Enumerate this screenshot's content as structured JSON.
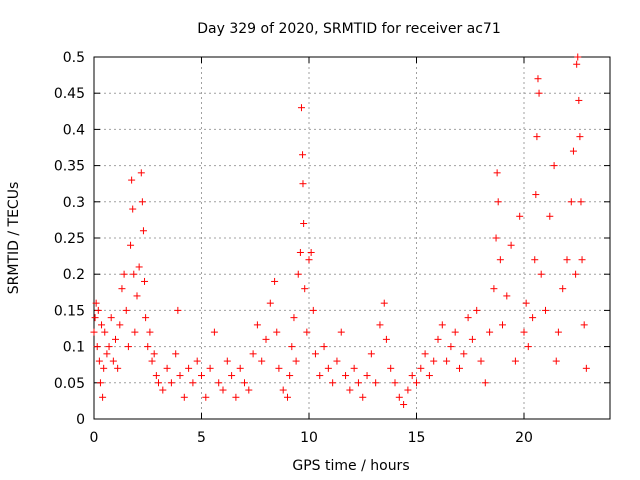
{
  "chart_data": {
    "type": "scatter",
    "title": "Day 329 of 2020, SRMTID for receiver ac71",
    "xlabel": "GPS time / hours",
    "ylabel": "SRMTID / TECUs",
    "xlim": [
      0,
      24
    ],
    "ylim": [
      0,
      0.5
    ],
    "xticks": [
      0,
      5,
      10,
      15,
      20
    ],
    "xtick_labels": [
      "0",
      "5",
      "10",
      "15",
      "20"
    ],
    "yticks": [
      0,
      0.05,
      0.1,
      0.15,
      0.2,
      0.25,
      0.3,
      0.35,
      0.4,
      0.45,
      0.5
    ],
    "ytick_labels": [
      "0",
      "0.05",
      "0.1",
      "0.15",
      "0.2",
      "0.25",
      "0.3",
      "0.35",
      "0.4",
      "0.45",
      "0.5"
    ],
    "grid": true,
    "marker": "+",
    "color": "#ff0000",
    "points": [
      [
        0.0,
        0.12
      ],
      [
        0.05,
        0.14
      ],
      [
        0.1,
        0.16
      ],
      [
        0.15,
        0.1
      ],
      [
        0.2,
        0.15
      ],
      [
        0.25,
        0.08
      ],
      [
        0.3,
        0.05
      ],
      [
        0.35,
        0.13
      ],
      [
        0.4,
        0.03
      ],
      [
        0.45,
        0.07
      ],
      [
        0.5,
        0.12
      ],
      [
        0.6,
        0.09
      ],
      [
        0.7,
        0.1
      ],
      [
        0.8,
        0.14
      ],
      [
        0.9,
        0.08
      ],
      [
        1.0,
        0.11
      ],
      [
        1.1,
        0.07
      ],
      [
        1.2,
        0.13
      ],
      [
        1.3,
        0.18
      ],
      [
        1.4,
        0.2
      ],
      [
        1.5,
        0.15
      ],
      [
        1.6,
        0.1
      ],
      [
        1.7,
        0.24
      ],
      [
        1.75,
        0.33
      ],
      [
        1.8,
        0.29
      ],
      [
        1.85,
        0.2
      ],
      [
        1.9,
        0.12
      ],
      [
        2.0,
        0.17
      ],
      [
        2.1,
        0.21
      ],
      [
        2.2,
        0.34
      ],
      [
        2.25,
        0.3
      ],
      [
        2.3,
        0.26
      ],
      [
        2.35,
        0.19
      ],
      [
        2.4,
        0.14
      ],
      [
        2.5,
        0.1
      ],
      [
        2.6,
        0.12
      ],
      [
        2.7,
        0.08
      ],
      [
        2.8,
        0.09
      ],
      [
        2.9,
        0.06
      ],
      [
        3.0,
        0.05
      ],
      [
        3.2,
        0.04
      ],
      [
        3.4,
        0.07
      ],
      [
        3.6,
        0.05
      ],
      [
        3.8,
        0.09
      ],
      [
        3.9,
        0.15
      ],
      [
        4.0,
        0.06
      ],
      [
        4.2,
        0.03
      ],
      [
        4.4,
        0.07
      ],
      [
        4.6,
        0.05
      ],
      [
        4.8,
        0.08
      ],
      [
        5.0,
        0.06
      ],
      [
        5.2,
        0.03
      ],
      [
        5.4,
        0.07
      ],
      [
        5.6,
        0.12
      ],
      [
        5.8,
        0.05
      ],
      [
        6.0,
        0.04
      ],
      [
        6.2,
        0.08
      ],
      [
        6.4,
        0.06
      ],
      [
        6.6,
        0.03
      ],
      [
        6.8,
        0.07
      ],
      [
        7.0,
        0.05
      ],
      [
        7.2,
        0.04
      ],
      [
        7.4,
        0.09
      ],
      [
        7.6,
        0.13
      ],
      [
        7.8,
        0.08
      ],
      [
        8.0,
        0.11
      ],
      [
        8.2,
        0.16
      ],
      [
        8.4,
        0.19
      ],
      [
        8.5,
        0.12
      ],
      [
        8.6,
        0.07
      ],
      [
        8.8,
        0.04
      ],
      [
        9.0,
        0.03
      ],
      [
        9.1,
        0.06
      ],
      [
        9.2,
        0.1
      ],
      [
        9.3,
        0.14
      ],
      [
        9.4,
        0.08
      ],
      [
        9.5,
        0.2
      ],
      [
        9.6,
        0.23
      ],
      [
        9.65,
        0.43
      ],
      [
        9.7,
        0.365
      ],
      [
        9.72,
        0.325
      ],
      [
        9.75,
        0.27
      ],
      [
        9.8,
        0.18
      ],
      [
        9.9,
        0.12
      ],
      [
        10.0,
        0.22
      ],
      [
        10.1,
        0.23
      ],
      [
        10.2,
        0.15
      ],
      [
        10.3,
        0.09
      ],
      [
        10.5,
        0.06
      ],
      [
        10.7,
        0.1
      ],
      [
        10.9,
        0.07
      ],
      [
        11.1,
        0.05
      ],
      [
        11.3,
        0.08
      ],
      [
        11.5,
        0.12
      ],
      [
        11.7,
        0.06
      ],
      [
        11.9,
        0.04
      ],
      [
        12.1,
        0.07
      ],
      [
        12.3,
        0.05
      ],
      [
        12.5,
        0.03
      ],
      [
        12.7,
        0.06
      ],
      [
        12.9,
        0.09
      ],
      [
        13.1,
        0.05
      ],
      [
        13.3,
        0.13
      ],
      [
        13.5,
        0.16
      ],
      [
        13.6,
        0.11
      ],
      [
        13.8,
        0.07
      ],
      [
        14.0,
        0.05
      ],
      [
        14.2,
        0.03
      ],
      [
        14.4,
        0.02
      ],
      [
        14.6,
        0.04
      ],
      [
        14.8,
        0.06
      ],
      [
        15.0,
        0.05
      ],
      [
        15.2,
        0.07
      ],
      [
        15.4,
        0.09
      ],
      [
        15.6,
        0.06
      ],
      [
        15.8,
        0.08
      ],
      [
        16.0,
        0.11
      ],
      [
        16.2,
        0.13
      ],
      [
        16.4,
        0.08
      ],
      [
        16.6,
        0.1
      ],
      [
        16.8,
        0.12
      ],
      [
        17.0,
        0.07
      ],
      [
        17.2,
        0.09
      ],
      [
        17.4,
        0.14
      ],
      [
        17.6,
        0.11
      ],
      [
        17.8,
        0.15
      ],
      [
        18.0,
        0.08
      ],
      [
        18.2,
        0.05
      ],
      [
        18.4,
        0.12
      ],
      [
        18.6,
        0.18
      ],
      [
        18.7,
        0.25
      ],
      [
        18.75,
        0.34
      ],
      [
        18.8,
        0.3
      ],
      [
        18.9,
        0.22
      ],
      [
        19.0,
        0.13
      ],
      [
        19.2,
        0.17
      ],
      [
        19.4,
        0.24
      ],
      [
        19.6,
        0.08
      ],
      [
        19.8,
        0.28
      ],
      [
        20.0,
        0.12
      ],
      [
        20.1,
        0.16
      ],
      [
        20.2,
        0.1
      ],
      [
        20.4,
        0.14
      ],
      [
        20.5,
        0.22
      ],
      [
        20.55,
        0.31
      ],
      [
        20.6,
        0.39
      ],
      [
        20.65,
        0.47
      ],
      [
        20.7,
        0.45
      ],
      [
        20.8,
        0.2
      ],
      [
        21.0,
        0.15
      ],
      [
        21.2,
        0.28
      ],
      [
        21.4,
        0.35
      ],
      [
        21.5,
        0.08
      ],
      [
        21.6,
        0.12
      ],
      [
        21.8,
        0.18
      ],
      [
        22.0,
        0.22
      ],
      [
        22.2,
        0.3
      ],
      [
        22.3,
        0.37
      ],
      [
        22.4,
        0.2
      ],
      [
        22.45,
        0.49
      ],
      [
        22.5,
        0.5
      ],
      [
        22.55,
        0.44
      ],
      [
        22.6,
        0.39
      ],
      [
        22.65,
        0.3
      ],
      [
        22.7,
        0.22
      ],
      [
        22.8,
        0.13
      ],
      [
        22.9,
        0.07
      ]
    ]
  }
}
